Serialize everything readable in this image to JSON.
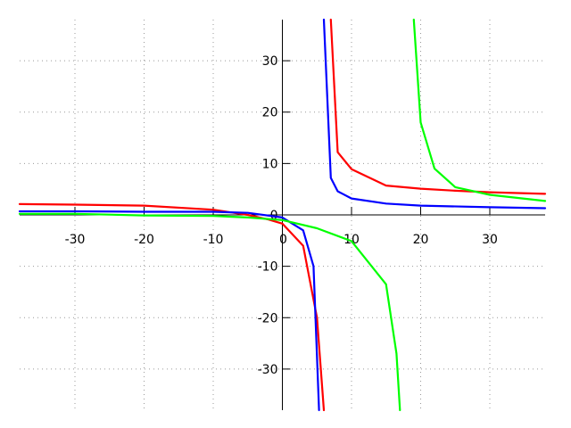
{
  "chart_data": {
    "type": "line",
    "title": "",
    "xlabel": "",
    "ylabel": "",
    "xlim": [
      -38,
      38
    ],
    "ylim": [
      -38,
      38
    ],
    "grid": true,
    "x_ticks": [
      -30,
      -20,
      -10,
      0,
      10,
      20,
      30
    ],
    "y_ticks": [
      -30,
      -20,
      -10,
      0,
      10,
      20,
      30
    ],
    "x_tick_labels": [
      "-30",
      "-20",
      "-10",
      "0",
      "10",
      "20",
      "30"
    ],
    "y_tick_labels": [
      "-30",
      "-20",
      "-10",
      "0",
      "10",
      "20",
      "30"
    ],
    "series": [
      {
        "color": "#ff0000",
        "vertical_asymptote": 6.5,
        "horizontal_asymptote": 3,
        "x": [
          -38,
          -30,
          -20,
          -10,
          -5,
          -2,
          0,
          3,
          5,
          6,
          6.5,
          7,
          8,
          10,
          15,
          20,
          25,
          30,
          38
        ],
        "y": [
          2.1,
          2.0,
          1.8,
          1.0,
          0.0,
          -0.9,
          -1.7,
          -6,
          -20,
          -38,
          null,
          38,
          12.2,
          8.9,
          5.7,
          5.1,
          4.7,
          4.4,
          4.1
        ]
      },
      {
        "color": "#0000ff",
        "vertical_asymptote": 5.5,
        "horizontal_asymptote": 1,
        "x": [
          -38,
          -30,
          -20,
          -10,
          -5,
          0,
          3,
          4.5,
          5.3,
          5.5,
          6,
          7,
          8,
          10,
          15,
          20,
          30,
          38
        ],
        "y": [
          0.7,
          0.7,
          0.6,
          0.6,
          0.4,
          -0.5,
          -3,
          -10,
          -38,
          null,
          38,
          7.2,
          4.6,
          3.2,
          2.2,
          1.8,
          1.5,
          1.3
        ]
      },
      {
        "color": "#00ff00",
        "vertical_asymptote": 18,
        "horizontal_asymptote": 0,
        "x": [
          -38,
          -30,
          -20,
          -10,
          -5,
          0,
          5,
          10,
          15,
          16.5,
          17,
          18,
          19,
          20,
          22,
          25,
          30,
          38
        ],
        "y": [
          0.2,
          0.2,
          -0.1,
          -0.2,
          -0.5,
          -1.0,
          -2.6,
          -5.1,
          -13.5,
          -27,
          -38,
          null,
          38,
          18,
          9,
          5.4,
          3.9,
          2.7
        ]
      }
    ]
  }
}
